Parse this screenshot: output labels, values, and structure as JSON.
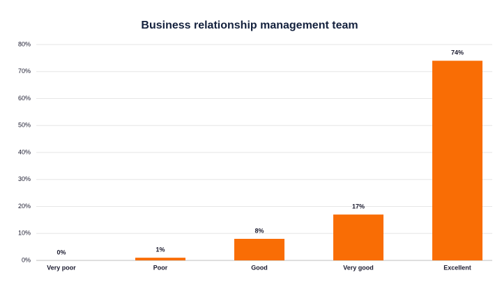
{
  "chart_data": {
    "type": "bar",
    "title": "Business relationship management team",
    "categories": [
      "Very poor",
      "Poor",
      "Good",
      "Very good",
      "Excellent"
    ],
    "values": [
      0,
      1,
      8,
      17,
      74
    ],
    "value_labels": [
      "0%",
      "1%",
      "8%",
      "17%",
      "74%"
    ],
    "color": "#f96d05",
    "ylim": [
      0,
      80
    ],
    "yticks": [
      {
        "value": 0,
        "label": "0%"
      },
      {
        "value": 10,
        "label": "10%"
      },
      {
        "value": 20,
        "label": "20%"
      },
      {
        "value": 30,
        "label": "30%"
      },
      {
        "value": 40,
        "label": "40%"
      },
      {
        "value": 50,
        "label": "50%"
      },
      {
        "value": 60,
        "label": "60%"
      },
      {
        "value": 70,
        "label": "70%"
      },
      {
        "value": 80,
        "label": "80%"
      }
    ],
    "grid": true
  }
}
